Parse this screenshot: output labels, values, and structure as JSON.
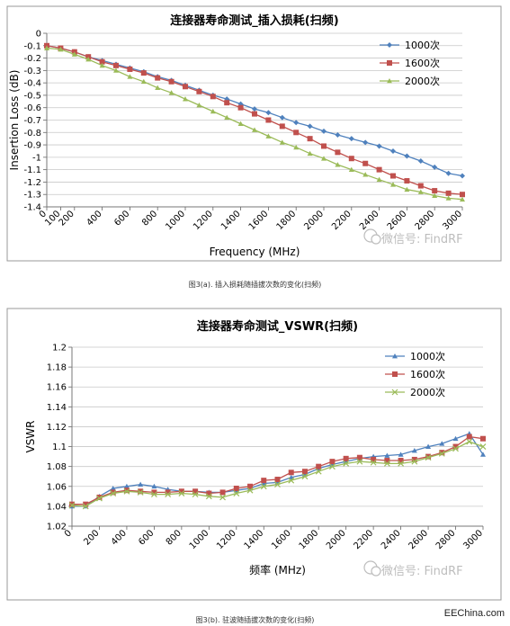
{
  "chart_data": [
    {
      "id": "a",
      "type": "line",
      "title": "连接器寿命测试_插入损耗(扫频)",
      "xlabel": "Frequency (MHz)",
      "ylabel": "Insertion Loss (dB)",
      "xlim": [
        0,
        3000
      ],
      "ylim": [
        -1.4,
        0
      ],
      "x_ticks": [
        "0",
        "100",
        "200",
        "400",
        "600",
        "800",
        "1000",
        "1200",
        "1400",
        "1600",
        "1800",
        "2000",
        "2200",
        "2400",
        "2600",
        "2800",
        "3000"
      ],
      "y_ticks": [
        "0",
        "-0.1",
        "-0.2",
        "-0.3",
        "-0.4",
        "-0.5",
        "-0.6",
        "-0.7",
        "-0.8",
        "-0.9",
        "-1",
        "-1.1",
        "-1.2",
        "-1.3",
        "-1.4"
      ],
      "grid": "horizontal",
      "legend": "top-right",
      "x": [
        0,
        100,
        200,
        300,
        400,
        500,
        600,
        700,
        800,
        900,
        1000,
        1100,
        1200,
        1300,
        1400,
        1500,
        1600,
        1700,
        1800,
        1900,
        2000,
        2100,
        2200,
        2300,
        2400,
        2500,
        2600,
        2700,
        2800,
        2900,
        3000
      ],
      "series": [
        {
          "name": "1000次",
          "color": "#4f81bd",
          "marker": "diamond",
          "values": [
            -0.1,
            -0.12,
            -0.15,
            -0.19,
            -0.22,
            -0.25,
            -0.28,
            -0.31,
            -0.35,
            -0.38,
            -0.42,
            -0.46,
            -0.5,
            -0.53,
            -0.57,
            -0.61,
            -0.64,
            -0.68,
            -0.72,
            -0.75,
            -0.79,
            -0.82,
            -0.85,
            -0.88,
            -0.91,
            -0.95,
            -0.99,
            -1.03,
            -1.08,
            -1.13,
            -1.15
          ]
        },
        {
          "name": "1600次",
          "color": "#c0504d",
          "marker": "square",
          "values": [
            -0.1,
            -0.12,
            -0.15,
            -0.19,
            -0.23,
            -0.26,
            -0.29,
            -0.32,
            -0.36,
            -0.39,
            -0.43,
            -0.47,
            -0.51,
            -0.56,
            -0.6,
            -0.65,
            -0.7,
            -0.75,
            -0.8,
            -0.85,
            -0.91,
            -0.96,
            -1.01,
            -1.05,
            -1.1,
            -1.15,
            -1.19,
            -1.23,
            -1.27,
            -1.29,
            -1.3
          ]
        },
        {
          "name": "2000次",
          "color": "#9bbb59",
          "marker": "triangle",
          "values": [
            -0.12,
            -0.13,
            -0.17,
            -0.21,
            -0.26,
            -0.3,
            -0.35,
            -0.39,
            -0.44,
            -0.48,
            -0.53,
            -0.58,
            -0.63,
            -0.68,
            -0.73,
            -0.78,
            -0.83,
            -0.88,
            -0.92,
            -0.97,
            -1.01,
            -1.06,
            -1.1,
            -1.14,
            -1.18,
            -1.22,
            -1.26,
            -1.28,
            -1.31,
            -1.33,
            -1.34
          ]
        }
      ]
    },
    {
      "id": "b",
      "type": "line",
      "title": "连接器寿命测试_VSWR(扫频)",
      "xlabel": "频率 (MHz)",
      "ylabel": "VSWR",
      "xlim": [
        0,
        3000
      ],
      "ylim": [
        1.02,
        1.2
      ],
      "x_ticks": [
        "0",
        "200",
        "400",
        "600",
        "800",
        "1000",
        "1200",
        "1400",
        "1600",
        "1800",
        "2000",
        "2200",
        "2400",
        "2600",
        "2800",
        "3000"
      ],
      "y_ticks": [
        "1.02",
        "1.04",
        "1.06",
        "1.08",
        "1.1",
        "1.12",
        "1.14",
        "1.16",
        "1.18",
        "1.2"
      ],
      "grid": "horizontal",
      "legend": "top-right",
      "x": [
        0,
        100,
        200,
        300,
        400,
        500,
        600,
        700,
        800,
        900,
        1000,
        1100,
        1200,
        1300,
        1400,
        1500,
        1600,
        1700,
        1800,
        1900,
        2000,
        2100,
        2200,
        2300,
        2400,
        2500,
        2600,
        2700,
        2800,
        2900,
        3000
      ],
      "series": [
        {
          "name": "1000次",
          "color": "#4f81bd",
          "marker": "triangle",
          "values": [
            1.04,
            1.04,
            1.05,
            1.058,
            1.06,
            1.062,
            1.06,
            1.057,
            1.055,
            1.055,
            1.054,
            1.054,
            1.056,
            1.058,
            1.063,
            1.064,
            1.069,
            1.072,
            1.078,
            1.082,
            1.085,
            1.088,
            1.09,
            1.091,
            1.092,
            1.096,
            1.1,
            1.103,
            1.108,
            1.113,
            1.092
          ]
        },
        {
          "name": "1600次",
          "color": "#c0504d",
          "marker": "square",
          "values": [
            1.042,
            1.042,
            1.049,
            1.054,
            1.056,
            1.055,
            1.054,
            1.054,
            1.055,
            1.055,
            1.053,
            1.054,
            1.058,
            1.06,
            1.066,
            1.067,
            1.074,
            1.075,
            1.08,
            1.085,
            1.088,
            1.089,
            1.087,
            1.086,
            1.086,
            1.087,
            1.09,
            1.094,
            1.1,
            1.11,
            1.108
          ]
        },
        {
          "name": "2000次",
          "color": "#9bbb59",
          "marker": "x",
          "values": [
            1.041,
            1.04,
            1.048,
            1.053,
            1.055,
            1.054,
            1.052,
            1.052,
            1.053,
            1.052,
            1.05,
            1.049,
            1.053,
            1.056,
            1.06,
            1.062,
            1.066,
            1.07,
            1.075,
            1.08,
            1.083,
            1.085,
            1.084,
            1.083,
            1.083,
            1.085,
            1.089,
            1.093,
            1.098,
            1.105,
            1.1
          ]
        }
      ]
    }
  ],
  "watermark": {
    "label": "微信号: FindRF"
  },
  "captions": {
    "a": "图3(a). 插入损耗随插拔次数的变化(扫频)",
    "b": "图3(b). 驻波随插拔次数的变化(扫频)"
  },
  "site": "EEChina.com"
}
